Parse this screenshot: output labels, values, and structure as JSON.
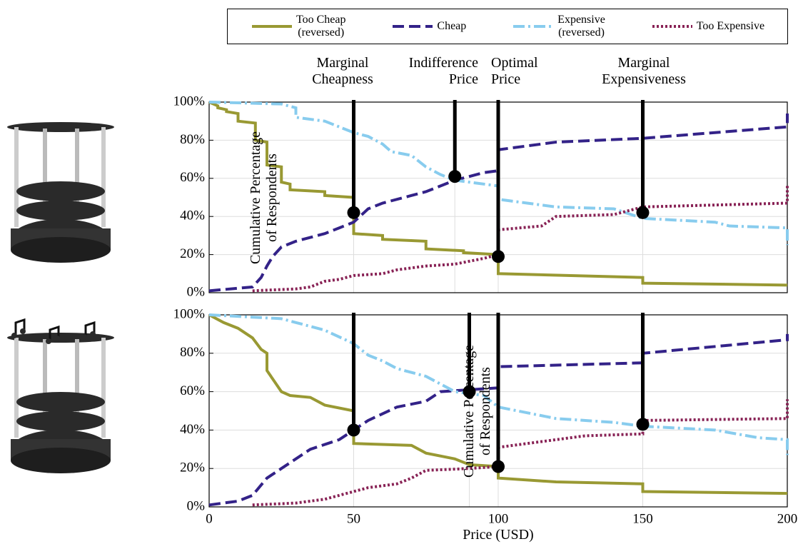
{
  "chart_data": [
    {
      "type": "line",
      "ylabel": "Cumulative Percentage\nof Respondents",
      "xlim": [
        0,
        200
      ],
      "xticks": [
        0,
        50,
        100,
        150,
        200
      ],
      "show_xtick_labels": false,
      "ylim": [
        0,
        100
      ],
      "yticks": [
        {
          "value": 0,
          "label": "0%"
        },
        {
          "value": 20,
          "label": "20%"
        },
        {
          "value": 40,
          "label": "40%"
        },
        {
          "value": 60,
          "label": "60%"
        },
        {
          "value": 80,
          "label": "80%"
        },
        {
          "value": 100,
          "label": "100%"
        }
      ],
      "grid": true,
      "series": [
        {
          "name": "Too Cheap\n(reversed)",
          "color": "#999933",
          "dash": "solid",
          "x": [
            0,
            3,
            3,
            6,
            6,
            10,
            10,
            16,
            16,
            20,
            20,
            25,
            25,
            28,
            28,
            40,
            40,
            50,
            50,
            60,
            60,
            75,
            75,
            88,
            88,
            100,
            100,
            150,
            150,
            200
          ],
          "values": [
            100,
            98,
            97,
            96,
            95,
            94,
            90,
            89,
            80,
            79,
            67,
            66,
            58,
            57,
            54,
            53,
            51,
            50,
            31,
            30,
            28,
            27,
            23,
            22,
            21,
            20,
            10,
            8,
            5,
            4
          ]
        },
        {
          "name": "Cheap",
          "color": "#332288",
          "dash": "dashed",
          "x": [
            0,
            15,
            18,
            20,
            22,
            25,
            30,
            35,
            40,
            45,
            50,
            55,
            60,
            70,
            75,
            80,
            85,
            90,
            95,
            100,
            100,
            110,
            120,
            150,
            200,
            200
          ],
          "values": [
            1,
            3,
            8,
            14,
            19,
            24,
            27,
            29,
            31,
            34,
            37,
            44,
            47,
            51,
            53,
            56,
            59,
            61,
            63,
            64,
            75,
            77,
            79,
            81,
            87,
            94
          ]
        },
        {
          "name": "Expensive\n(reversed)",
          "color": "#88ccee",
          "dash": "dashdot",
          "x": [
            0,
            25,
            30,
            30,
            40,
            45,
            50,
            55,
            60,
            63,
            70,
            75,
            80,
            85,
            90,
            100,
            100,
            110,
            120,
            140,
            150,
            175,
            180,
            200,
            200
          ],
          "values": [
            100,
            99,
            97,
            92,
            90,
            87,
            84,
            82,
            78,
            74,
            72,
            66,
            62,
            59,
            58,
            56,
            49,
            47,
            45,
            44,
            39,
            37,
            35,
            34,
            25
          ]
        },
        {
          "name": "Too Expensive",
          "color": "#882255",
          "dash": "dotted",
          "x": [
            15,
            30,
            35,
            40,
            45,
            50,
            60,
            65,
            75,
            85,
            95,
            100,
            100,
            115,
            120,
            140,
            150,
            200,
            200
          ],
          "values": [
            1,
            2,
            3,
            6,
            7,
            9,
            10,
            12,
            14,
            15,
            18,
            20,
            33,
            35,
            40,
            41,
            45,
            47,
            57
          ]
        }
      ],
      "annotations": [
        {
          "label": "Marginal\nCheapness",
          "x": 50,
          "y": 42
        },
        {
          "label": "Indifference\nPrice",
          "x": 85,
          "y": 61
        },
        {
          "label": "Optimal\nPrice",
          "x": 100,
          "y": 19
        },
        {
          "label": "Marginal\nExpensiveness",
          "x": 150,
          "y": 42
        }
      ]
    },
    {
      "type": "line",
      "ylabel": "Cumulative Percentage\nof Respondents",
      "xlabel": "Price (USD)",
      "xlim": [
        0,
        200
      ],
      "xticks": [
        0,
        50,
        100,
        150,
        200
      ],
      "show_xtick_labels": true,
      "ylim": [
        0,
        100
      ],
      "yticks": [
        {
          "value": 0,
          "label": "0%"
        },
        {
          "value": 20,
          "label": "20%"
        },
        {
          "value": 40,
          "label": "40%"
        },
        {
          "value": 60,
          "label": "60%"
        },
        {
          "value": 80,
          "label": "80%"
        },
        {
          "value": 100,
          "label": "100%"
        }
      ],
      "grid": true,
      "series": [
        {
          "color": "#999933",
          "dash": "solid",
          "x": [
            0,
            5,
            10,
            15,
            18,
            20,
            20,
            25,
            28,
            35,
            40,
            50,
            50,
            70,
            75,
            85,
            90,
            100,
            100,
            120,
            150,
            150,
            200
          ],
          "values": [
            100,
            96,
            93,
            88,
            82,
            80,
            71,
            60,
            58,
            57,
            53,
            50,
            33,
            32,
            28,
            25,
            22,
            21,
            15,
            13,
            12,
            8,
            7
          ]
        },
        {
          "color": "#332288",
          "dash": "dashed",
          "x": [
            0,
            10,
            15,
            20,
            25,
            35,
            45,
            55,
            65,
            75,
            80,
            90,
            100,
            100,
            150,
            150,
            200,
            200
          ],
          "values": [
            1,
            3,
            6,
            15,
            20,
            30,
            35,
            45,
            52,
            55,
            60,
            61,
            62,
            73,
            75,
            80,
            87,
            90
          ]
        },
        {
          "color": "#88ccee",
          "dash": "dashdot",
          "x": [
            0,
            25,
            30,
            40,
            50,
            55,
            60,
            65,
            75,
            80,
            85,
            95,
            100,
            110,
            120,
            140,
            150,
            175,
            190,
            200,
            200
          ],
          "values": [
            100,
            98,
            96,
            92,
            85,
            79,
            76,
            72,
            68,
            64,
            60,
            58,
            52,
            49,
            46,
            44,
            42,
            40,
            36,
            35,
            27
          ]
        },
        {
          "color": "#882255",
          "dash": "dotted",
          "x": [
            15,
            30,
            40,
            50,
            55,
            65,
            70,
            75,
            90,
            100,
            100,
            120,
            130,
            150,
            150,
            200,
            200
          ],
          "values": [
            1,
            2,
            4,
            8,
            10,
            12,
            15,
            19,
            20,
            21,
            31,
            35,
            37,
            38,
            45,
            46,
            56
          ]
        }
      ],
      "annotations": [
        {
          "x": 50,
          "y": 40
        },
        {
          "x": 90,
          "y": 60
        },
        {
          "x": 100,
          "y": 21
        },
        {
          "x": 150,
          "y": 43
        }
      ]
    }
  ]
}
